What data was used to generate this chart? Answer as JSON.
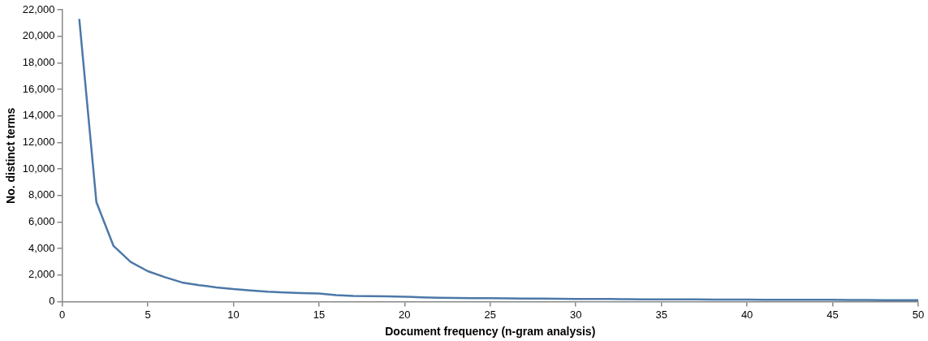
{
  "chart_data": {
    "type": "line",
    "xlabel": "Document frequency (n-gram analysis)",
    "ylabel": "No. distinct terms",
    "x": [
      1,
      2,
      3,
      4,
      5,
      6,
      7,
      8,
      9,
      10,
      11,
      12,
      13,
      14,
      15,
      16,
      17,
      18,
      19,
      20,
      21,
      22,
      23,
      24,
      25,
      26,
      27,
      28,
      29,
      30,
      31,
      32,
      33,
      34,
      35,
      36,
      37,
      38,
      39,
      40,
      41,
      42,
      43,
      44,
      45,
      46,
      47,
      48,
      49,
      50
    ],
    "series": [
      {
        "color": "#4c78a8",
        "values": [
          21300,
          7500,
          4200,
          3000,
          2300,
          1850,
          1450,
          1250,
          1080,
          950,
          850,
          750,
          700,
          650,
          620,
          500,
          430,
          420,
          400,
          380,
          330,
          300,
          280,
          270,
          260,
          250,
          240,
          230,
          220,
          210,
          200,
          200,
          190,
          180,
          180,
          170,
          170,
          160,
          160,
          160,
          150,
          150,
          140,
          140,
          140,
          130,
          130,
          120,
          120,
          120
        ]
      }
    ],
    "xlim": [
      0,
      50
    ],
    "xticks": [
      0,
      5,
      10,
      15,
      20,
      25,
      30,
      35,
      40,
      45,
      50
    ],
    "ylim": [
      0,
      22000
    ],
    "yticks": [
      0,
      {
        "value": 2000,
        "label": "2,000"
      },
      {
        "value": 4000,
        "label": "4,000"
      },
      {
        "value": 6000,
        "label": "6,000"
      },
      {
        "value": 8000,
        "label": "8,000"
      },
      {
        "value": 10000,
        "label": "10,000"
      },
      {
        "value": 12000,
        "label": "12,000"
      },
      {
        "value": 14000,
        "label": "14,000"
      },
      {
        "value": 16000,
        "label": "16,000"
      },
      {
        "value": 18000,
        "label": "18,000"
      },
      {
        "value": 20000,
        "label": "20,000"
      },
      {
        "value": 22000,
        "label": "22,000"
      }
    ],
    "grid": false,
    "legend": false,
    "marker": "none",
    "line_style": "solid"
  }
}
